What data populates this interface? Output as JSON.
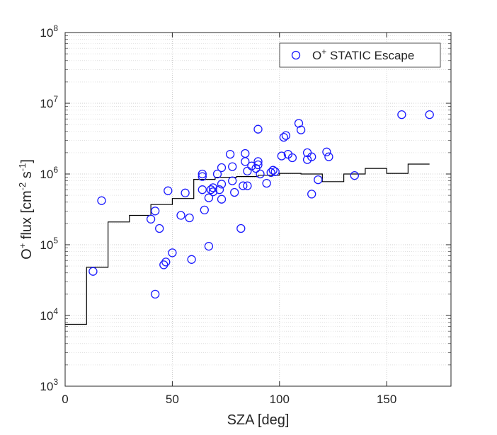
{
  "chart_data": {
    "type": "scatter",
    "x_label": "SZA   [deg]",
    "y_label_parts": {
      "o": "O",
      "plus": "+",
      "flux": " flux  [cm",
      "minus2": "-2",
      "s": " s",
      "minus1": "-1",
      "close": "]"
    },
    "x_range": [
      0,
      180
    ],
    "y_range": [
      1000,
      100000000
    ],
    "y_scale": "log",
    "grid": true,
    "legend_position": "top-right",
    "x_ticks": [
      {
        "value": 0,
        "label": "0"
      },
      {
        "value": 50,
        "label": "50"
      },
      {
        "value": 100,
        "label": "100"
      },
      {
        "value": 150,
        "label": "150"
      }
    ],
    "y_ticks": [
      {
        "value": 1000,
        "base": "10",
        "exp": "3"
      },
      {
        "value": 10000,
        "base": "10",
        "exp": "4"
      },
      {
        "value": 100000,
        "base": "10",
        "exp": "5"
      },
      {
        "value": 1000000,
        "base": "10",
        "exp": "6"
      },
      {
        "value": 10000000,
        "base": "10",
        "exp": "7"
      },
      {
        "value": 100000000,
        "base": "10",
        "exp": "8"
      }
    ],
    "series": [
      {
        "name": "O+ STATIC Escape",
        "legend_parts": {
          "o": "O",
          "plus": "+",
          "rest": " STATIC Escape"
        },
        "marker": "circle-open",
        "color": "#1a1aff",
        "points": [
          [
            13,
            42000
          ],
          [
            17,
            420000
          ],
          [
            40,
            230000
          ],
          [
            42,
            20000
          ],
          [
            42,
            300000
          ],
          [
            44,
            170000
          ],
          [
            46,
            52000
          ],
          [
            47,
            57000
          ],
          [
            48,
            580000
          ],
          [
            50,
            77000
          ],
          [
            54,
            260000
          ],
          [
            56,
            540000
          ],
          [
            58,
            240000
          ],
          [
            59,
            62000
          ],
          [
            64,
            1000000
          ],
          [
            64,
            920000
          ],
          [
            64,
            600000
          ],
          [
            65,
            310000
          ],
          [
            67,
            95000
          ],
          [
            67,
            460000
          ],
          [
            68,
            600000
          ],
          [
            69,
            640000
          ],
          [
            69,
            560000
          ],
          [
            71,
            1000000
          ],
          [
            72,
            600000
          ],
          [
            73,
            720000
          ],
          [
            73,
            1230000
          ],
          [
            73,
            440000
          ],
          [
            77,
            1900000
          ],
          [
            78,
            1270000
          ],
          [
            78,
            800000
          ],
          [
            79,
            550000
          ],
          [
            82,
            170000
          ],
          [
            83,
            680000
          ],
          [
            84,
            1500000
          ],
          [
            84,
            1950000
          ],
          [
            85,
            1100000
          ],
          [
            85,
            680000
          ],
          [
            87,
            1300000
          ],
          [
            89,
            1200000
          ],
          [
            90,
            4300000
          ],
          [
            90,
            1350000
          ],
          [
            90,
            1500000
          ],
          [
            91,
            1000000
          ],
          [
            94,
            740000
          ],
          [
            96,
            1050000
          ],
          [
            97,
            1130000
          ],
          [
            98,
            1080000
          ],
          [
            101,
            1800000
          ],
          [
            102,
            3300000
          ],
          [
            103,
            3500000
          ],
          [
            104,
            1900000
          ],
          [
            106,
            1700000
          ],
          [
            109,
            5200000
          ],
          [
            110,
            4200000
          ],
          [
            113,
            1600000
          ],
          [
            113,
            2000000
          ],
          [
            115,
            1750000
          ],
          [
            115,
            520000
          ],
          [
            118,
            830000
          ],
          [
            122,
            2050000
          ],
          [
            123,
            1750000
          ],
          [
            135,
            950000
          ],
          [
            157,
            6900000
          ],
          [
            170,
            6900000
          ]
        ]
      },
      {
        "name": "",
        "type": "step",
        "color": "#000000",
        "points": [
          [
            0,
            7500
          ],
          [
            10,
            7500
          ],
          [
            10,
            48000
          ],
          [
            20,
            48000
          ],
          [
            20,
            210000
          ],
          [
            30,
            210000
          ],
          [
            30,
            260000
          ],
          [
            40,
            260000
          ],
          [
            40,
            370000
          ],
          [
            50,
            370000
          ],
          [
            50,
            450000
          ],
          [
            60,
            450000
          ],
          [
            60,
            840000
          ],
          [
            70,
            840000
          ],
          [
            70,
            900000
          ],
          [
            80,
            900000
          ],
          [
            80,
            920000
          ],
          [
            90,
            920000
          ],
          [
            90,
            960000
          ],
          [
            100,
            960000
          ],
          [
            100,
            1020000
          ],
          [
            110,
            1020000
          ],
          [
            110,
            1000000
          ],
          [
            120,
            1000000
          ],
          [
            120,
            780000
          ],
          [
            130,
            780000
          ],
          [
            130,
            1000000
          ],
          [
            140,
            1000000
          ],
          [
            140,
            1200000
          ],
          [
            150,
            1200000
          ],
          [
            150,
            1020000
          ],
          [
            160,
            1020000
          ],
          [
            160,
            1380000
          ],
          [
            170,
            1380000
          ]
        ]
      }
    ]
  }
}
